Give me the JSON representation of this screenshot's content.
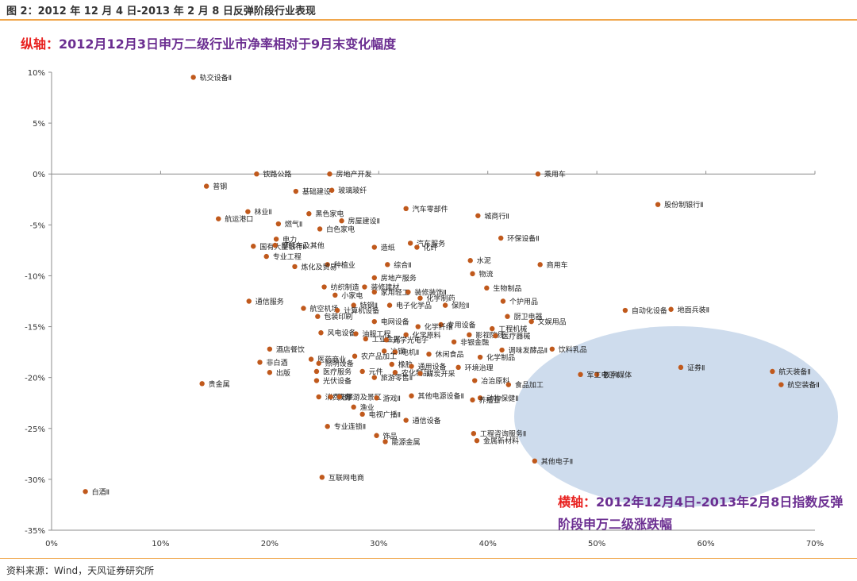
{
  "figure_title": "图 2：2012 年 12 月 4 日-2013 年 2 月 8 日反弹阶段行业表现",
  "y_caption": {
    "key": "纵轴：",
    "text": "2012月12月3日申万二级行业市净率相对于9月末变化幅度"
  },
  "x_caption": {
    "key": "横轴：",
    "text": "2012年12月4日-2013年2月8日指数反弹阶段申万二级涨跌幅"
  },
  "source": "资料来源：Wind，天风证券研究所",
  "colors": {
    "point": "#c0591c",
    "highlight": "#c5d6ea",
    "rule": "#f0a64b",
    "caption_key": "#e8201e",
    "caption_text": "#6b2e91"
  },
  "chart_data": {
    "type": "scatter",
    "x_ticks": [
      "0%",
      "10%",
      "20%",
      "30%",
      "40%",
      "50%",
      "60%",
      "70%"
    ],
    "y_ticks": [
      "10%",
      "5%",
      "0%",
      "-5%",
      "-10%",
      "-15%",
      "-20%",
      "-25%",
      "-30%",
      "-35%"
    ],
    "xlim": [
      0,
      0.7
    ],
    "ylim": [
      -0.35,
      0.1
    ],
    "points": [
      {
        "label": "轨交设备Ⅱ",
        "x": 0.13,
        "y": 0.095
      },
      {
        "label": "铁路公路",
        "x": 0.188,
        "y": 0.0
      },
      {
        "label": "房地产开发",
        "x": 0.255,
        "y": 0.0
      },
      {
        "label": "乘用车",
        "x": 0.446,
        "y": 0.0
      },
      {
        "label": "普钢",
        "x": 0.142,
        "y": -0.012
      },
      {
        "label": "基础建设",
        "x": 0.224,
        "y": -0.017
      },
      {
        "label": "玻璃玻纤",
        "x": 0.257,
        "y": -0.016
      },
      {
        "label": "股份制银行Ⅱ",
        "x": 0.556,
        "y": -0.03
      },
      {
        "label": "林业Ⅱ",
        "x": 0.18,
        "y": -0.037
      },
      {
        "label": "黑色家电",
        "x": 0.236,
        "y": -0.039
      },
      {
        "label": "汽车零部件",
        "x": 0.325,
        "y": -0.034
      },
      {
        "label": "城商行Ⅱ",
        "x": 0.391,
        "y": -0.041
      },
      {
        "label": "航运港口",
        "x": 0.153,
        "y": -0.044
      },
      {
        "label": "燃气Ⅱ",
        "x": 0.208,
        "y": -0.049
      },
      {
        "label": "房屋建设Ⅱ",
        "x": 0.266,
        "y": -0.046
      },
      {
        "label": "白色家电",
        "x": 0.246,
        "y": -0.054
      },
      {
        "label": "国有大型银行Ⅱ",
        "x": 0.185,
        "y": -0.071
      },
      {
        "label": "电力",
        "x": 0.206,
        "y": -0.064
      },
      {
        "label": "摩托车及其他",
        "x": 0.205,
        "y": -0.07
      },
      {
        "label": "环保设备Ⅱ",
        "x": 0.412,
        "y": -0.063
      },
      {
        "label": "汽车服务",
        "x": 0.329,
        "y": -0.068
      },
      {
        "label": "造纸",
        "x": 0.296,
        "y": -0.072
      },
      {
        "label": "化纤",
        "x": 0.335,
        "y": -0.072
      },
      {
        "label": "专业工程",
        "x": 0.197,
        "y": -0.081
      },
      {
        "label": "水泥",
        "x": 0.384,
        "y": -0.085
      },
      {
        "label": "种植业",
        "x": 0.253,
        "y": -0.089
      },
      {
        "label": "综合Ⅱ",
        "x": 0.308,
        "y": -0.089
      },
      {
        "label": "商用车",
        "x": 0.448,
        "y": -0.089
      },
      {
        "label": "炼化及贸易",
        "x": 0.223,
        "y": -0.091
      },
      {
        "label": "物流",
        "x": 0.386,
        "y": -0.098
      },
      {
        "label": "房地产服务",
        "x": 0.296,
        "y": -0.102
      },
      {
        "label": "纺织制造",
        "x": 0.25,
        "y": -0.111
      },
      {
        "label": "装修建材",
        "x": 0.287,
        "y": -0.111
      },
      {
        "label": "家用轻工",
        "x": 0.296,
        "y": -0.116
      },
      {
        "label": "装修装饰Ⅱ",
        "x": 0.327,
        "y": -0.116
      },
      {
        "label": "生物制品",
        "x": 0.399,
        "y": -0.112
      },
      {
        "label": "小家电",
        "x": 0.26,
        "y": -0.119
      },
      {
        "label": "化学制药",
        "x": 0.338,
        "y": -0.122
      },
      {
        "label": "通信服务",
        "x": 0.181,
        "y": -0.125
      },
      {
        "label": "个护用品",
        "x": 0.414,
        "y": -0.125
      },
      {
        "label": "特钢Ⅱ",
        "x": 0.277,
        "y": -0.129
      },
      {
        "label": "电子化学品",
        "x": 0.31,
        "y": -0.129
      },
      {
        "label": "保险Ⅱ",
        "x": 0.361,
        "y": -0.129
      },
      {
        "label": "航空机场",
        "x": 0.231,
        "y": -0.132
      },
      {
        "label": "计算机设备",
        "x": 0.262,
        "y": -0.134
      },
      {
        "label": "自动化设备",
        "x": 0.526,
        "y": -0.134
      },
      {
        "label": "地面兵装Ⅱ",
        "x": 0.568,
        "y": -0.133
      },
      {
        "label": "包装印刷",
        "x": 0.244,
        "y": -0.14
      },
      {
        "label": "厨卫电器",
        "x": 0.418,
        "y": -0.14
      },
      {
        "label": "电网设备",
        "x": 0.296,
        "y": -0.145
      },
      {
        "label": "专用设备",
        "x": 0.357,
        "y": -0.148
      },
      {
        "label": "文娱用品",
        "x": 0.44,
        "y": -0.145
      },
      {
        "label": "化学纤维",
        "x": 0.336,
        "y": -0.15
      },
      {
        "label": "工程机械",
        "x": 0.404,
        "y": -0.152
      },
      {
        "label": "风电设备",
        "x": 0.247,
        "y": -0.156
      },
      {
        "label": "油服工程",
        "x": 0.279,
        "y": -0.157
      },
      {
        "label": "化学原料",
        "x": 0.325,
        "y": -0.158
      },
      {
        "label": "影视院线",
        "x": 0.383,
        "y": -0.158
      },
      {
        "label": "医疗器械",
        "x": 0.407,
        "y": -0.159
      },
      {
        "label": "工业金属",
        "x": 0.288,
        "y": -0.162
      },
      {
        "label": "光学光电子",
        "x": 0.307,
        "y": -0.163
      },
      {
        "label": "非银金融",
        "x": 0.369,
        "y": -0.165
      },
      {
        "label": "酒店餐饮",
        "x": 0.2,
        "y": -0.172
      },
      {
        "label": "饮料乳品",
        "x": 0.459,
        "y": -0.172
      },
      {
        "label": "调味发酵品Ⅱ",
        "x": 0.413,
        "y": -0.173
      },
      {
        "label": "冶钢",
        "x": 0.305,
        "y": -0.174
      },
      {
        "label": "休闲食品",
        "x": 0.346,
        "y": -0.177
      },
      {
        "label": "电机Ⅱ",
        "x": 0.315,
        "y": -0.175
      },
      {
        "label": "农产品加工",
        "x": 0.278,
        "y": -0.179
      },
      {
        "label": "化学制品",
        "x": 0.393,
        "y": -0.18
      },
      {
        "label": "非白酒",
        "x": 0.191,
        "y": -0.185
      },
      {
        "label": "医药商业",
        "x": 0.238,
        "y": -0.182
      },
      {
        "label": "照明设备",
        "x": 0.245,
        "y": -0.186
      },
      {
        "label": "环境治理",
        "x": 0.373,
        "y": -0.19
      },
      {
        "label": "橡胶",
        "x": 0.312,
        "y": -0.187
      },
      {
        "label": "出版",
        "x": 0.2,
        "y": -0.195
      },
      {
        "label": "医疗服务",
        "x": 0.243,
        "y": -0.194
      },
      {
        "label": "元件",
        "x": 0.285,
        "y": -0.194
      },
      {
        "label": "农化制品",
        "x": 0.315,
        "y": -0.195
      },
      {
        "label": "通用设备",
        "x": 0.33,
        "y": -0.189
      },
      {
        "label": "数字媒体",
        "x": 0.5,
        "y": -0.197
      },
      {
        "label": "证券Ⅱ",
        "x": 0.577,
        "y": -0.19
      },
      {
        "label": "航天装备Ⅱ",
        "x": 0.661,
        "y": -0.194
      },
      {
        "label": "煤炭开采",
        "x": 0.338,
        "y": -0.196
      },
      {
        "label": "光伏设备",
        "x": 0.243,
        "y": -0.203
      },
      {
        "label": "旅游零售Ⅱ",
        "x": 0.296,
        "y": -0.2
      },
      {
        "label": "冶治原料",
        "x": 0.388,
        "y": -0.203
      },
      {
        "label": "贵金属",
        "x": 0.138,
        "y": -0.206
      },
      {
        "label": "食品加工",
        "x": 0.419,
        "y": -0.207
      },
      {
        "label": "军工电子Ⅱ",
        "x": 0.485,
        "y": -0.197
      },
      {
        "label": "航空装备Ⅱ",
        "x": 0.669,
        "y": -0.207
      },
      {
        "label": "消费电子",
        "x": 0.245,
        "y": -0.219
      },
      {
        "label": "教育",
        "x": 0.256,
        "y": -0.219
      },
      {
        "label": "旅游及景区",
        "x": 0.264,
        "y": -0.219
      },
      {
        "label": "游戏Ⅱ",
        "x": 0.298,
        "y": -0.22
      },
      {
        "label": "其他电源设备Ⅱ",
        "x": 0.33,
        "y": -0.218
      },
      {
        "label": "动物保健Ⅱ",
        "x": 0.393,
        "y": -0.22
      },
      {
        "label": "养殖业",
        "x": 0.386,
        "y": -0.222
      },
      {
        "label": "渔业",
        "x": 0.277,
        "y": -0.229
      },
      {
        "label": "电视广播Ⅱ",
        "x": 0.285,
        "y": -0.236
      },
      {
        "label": "通信设备",
        "x": 0.325,
        "y": -0.242
      },
      {
        "label": "专业连锁Ⅱ",
        "x": 0.253,
        "y": -0.248
      },
      {
        "label": "饰品",
        "x": 0.298,
        "y": -0.257
      },
      {
        "label": "能源金属",
        "x": 0.306,
        "y": -0.263
      },
      {
        "label": "工程咨询服务Ⅱ",
        "x": 0.387,
        "y": -0.255
      },
      {
        "label": "金属新材料",
        "x": 0.39,
        "y": -0.262
      },
      {
        "label": "其他电子Ⅱ",
        "x": 0.443,
        "y": -0.282
      },
      {
        "label": "互联网电商",
        "x": 0.248,
        "y": -0.298
      },
      {
        "label": "白酒Ⅱ",
        "x": 0.031,
        "y": -0.312
      }
    ]
  }
}
